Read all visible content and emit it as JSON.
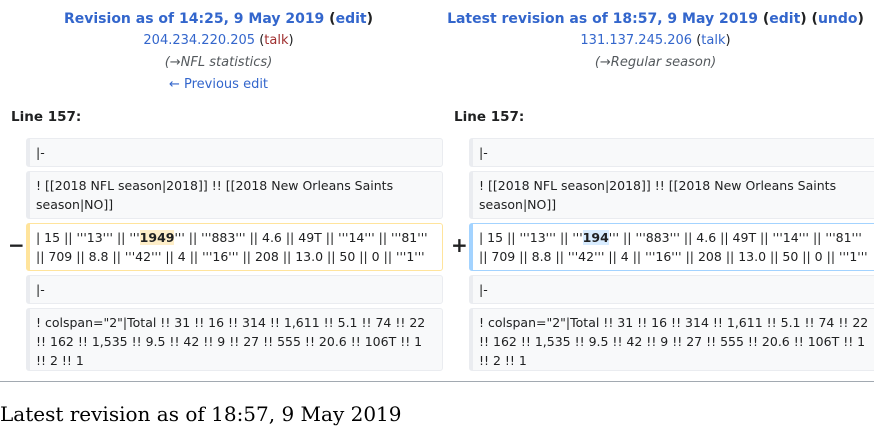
{
  "left": {
    "title_prefix": "Revision as of 14:25, 9 May 2019",
    "edit": "edit",
    "user": "204.234.220.205",
    "talk": "talk",
    "summary": "(→NFL statistics)",
    "prev": "← Previous edit"
  },
  "right": {
    "title_prefix": "Latest revision as of 18:57, 9 May 2019",
    "edit": "edit",
    "undo": "undo",
    "user": "131.137.245.206",
    "talk": "talk",
    "summary": "(→Regular season)"
  },
  "line_left": "Line 157:",
  "line_right": "Line 157:",
  "rows": {
    "r1": "|-",
    "r2": "! [[2018 NFL season|2018]] !! [[2018 New Orleans Saints season|NO]]",
    "r3_pre": "| 15 || '''13''' || '''",
    "r3_del": "1949",
    "r3_add": "194",
    "r3_post": "''' || '''883''' || 4.6 || 49T || '''14''' || '''81''' || 709 || 8.8 || '''42''' || 4 || '''16''' || 208 || 13.0 || 50 || 0 || '''1''' || 0",
    "r4": "|-",
    "r5": "! colspan=\"2\"|Total !! 31 !! 16 !! 314 !! 1,611 !! 5.1 !! 74 !! 22 !! 162 !! 1,535 !! 9.5 !! 42 !! 9 !! 27 !! 555 !! 20.6 !! 106T !! 1 !! 2 !! 1"
  },
  "minus": "−",
  "plus": "+",
  "footer_title": "Latest revision as of 18:57, 9 May 2019",
  "colors": {
    "link": "#3366cc",
    "deleted": "#ffe49c",
    "added": "#a3d3ff"
  }
}
